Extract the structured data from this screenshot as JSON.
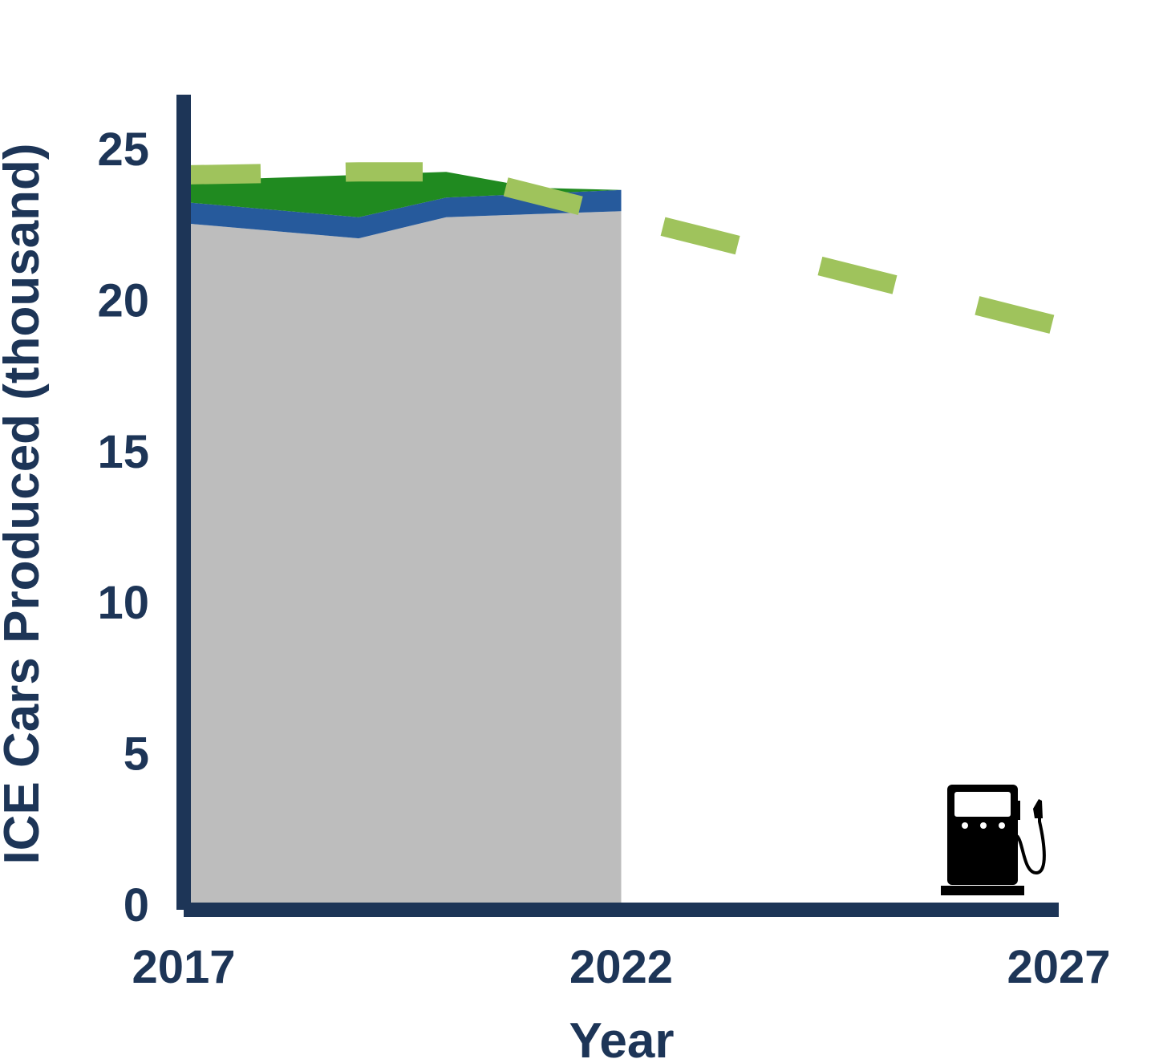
{
  "chart_data": {
    "type": "area",
    "title": "",
    "xlabel": "Year",
    "ylabel": "ICE Cars Produced (thousand)",
    "xlim": [
      2017,
      2027
    ],
    "ylim": [
      0,
      26.7
    ],
    "grid": false,
    "x_ticks": [
      2017,
      2022,
      2027
    ],
    "y_ticks": [
      0,
      5,
      10,
      15,
      20,
      25
    ],
    "stacked_series": [
      {
        "x": [
          2017,
          2019,
          2020,
          2022
        ],
        "values": [
          22.5,
          22.0,
          22.7,
          22.9
        ]
      },
      {
        "x": [
          2017,
          2019,
          2020,
          2022
        ],
        "values": [
          0.7,
          0.7,
          0.65,
          0.7
        ]
      },
      {
        "x": [
          2017,
          2019,
          2020,
          2021,
          2022
        ],
        "values": [
          0.7,
          1.4,
          0.85,
          0.2,
          0.0
        ]
      }
    ],
    "trend_line": {
      "style": "dashed",
      "x": [
        2017,
        2019,
        2020,
        2027
      ],
      "values": [
        24.1,
        24.2,
        24.2,
        19.1
      ]
    },
    "colors": {
      "axis": "#1d3557",
      "text": "#1d3557",
      "series": [
        "#bdbdbd",
        "#265a9c",
        "#208a20"
      ],
      "trend_line": "#9fc35c",
      "icon": "#000000"
    },
    "icon": "fuel-pump-icon"
  }
}
